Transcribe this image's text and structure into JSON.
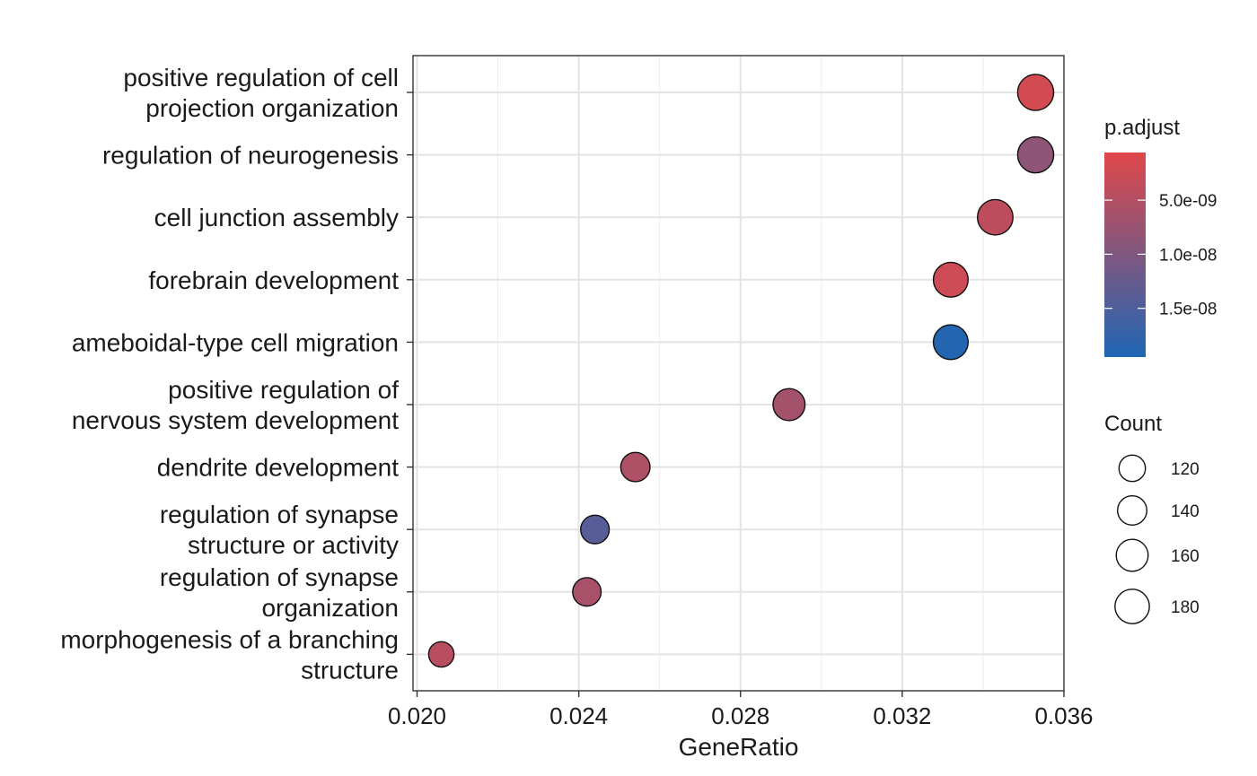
{
  "chart_data": {
    "type": "scatter",
    "xlabel": "GeneRatio",
    "ylabel": "",
    "xlim": [
      0.0199,
      0.036
    ],
    "x_ticks": [
      "0.020",
      "0.024",
      "0.028",
      "0.032",
      "0.036"
    ],
    "x_tick_values": [
      0.02,
      0.024,
      0.028,
      0.032,
      0.036
    ],
    "grid": true,
    "categories": [
      [
        "positive regulation of cell",
        "projection organization"
      ],
      [
        "regulation of neurogenesis"
      ],
      [
        "cell junction assembly"
      ],
      [
        "forebrain development"
      ],
      [
        "ameboidal-type cell migration"
      ],
      [
        "positive regulation of",
        "nervous system development"
      ],
      [
        "dendrite development"
      ],
      [
        "regulation of synapse",
        "structure or activity"
      ],
      [
        "regulation of synapse",
        "organization"
      ],
      [
        "morphogenesis of a branching",
        "structure"
      ]
    ],
    "points": [
      {
        "gene_ratio": 0.0353,
        "count": 194,
        "p_adjust": 2e-09
      },
      {
        "gene_ratio": 0.0353,
        "count": 194,
        "p_adjust": 8.5e-09
      },
      {
        "gene_ratio": 0.0343,
        "count": 189,
        "p_adjust": 4e-09
      },
      {
        "gene_ratio": 0.0332,
        "count": 183,
        "p_adjust": 2.6e-09
      },
      {
        "gene_ratio": 0.0332,
        "count": 183,
        "p_adjust": 1.9e-08
      },
      {
        "gene_ratio": 0.0292,
        "count": 161,
        "p_adjust": 6.5e-09
      },
      {
        "gene_ratio": 0.0254,
        "count": 140,
        "p_adjust": 5.5e-09
      },
      {
        "gene_ratio": 0.0244,
        "count": 135,
        "p_adjust": 1.4e-08
      },
      {
        "gene_ratio": 0.0242,
        "count": 134,
        "p_adjust": 6e-09
      },
      {
        "gene_ratio": 0.0206,
        "count": 113,
        "p_adjust": 4.5e-09
      }
    ],
    "color_legend": {
      "title": "p.adjust",
      "low_color": "#e0484a",
      "high_color": "#1f66b5",
      "range": [
        6e-10,
        1.95e-08
      ],
      "ticks": [
        5e-09,
        1e-08,
        1.5e-08
      ],
      "tick_labels": [
        "5.0e-09",
        "1.0e-08",
        "1.5e-08"
      ],
      "placement": "right"
    },
    "size_legend": {
      "title": "Count",
      "values": [
        120,
        140,
        160,
        180
      ],
      "labels": [
        "120",
        "140",
        "160",
        "180"
      ],
      "placement": "right"
    }
  }
}
